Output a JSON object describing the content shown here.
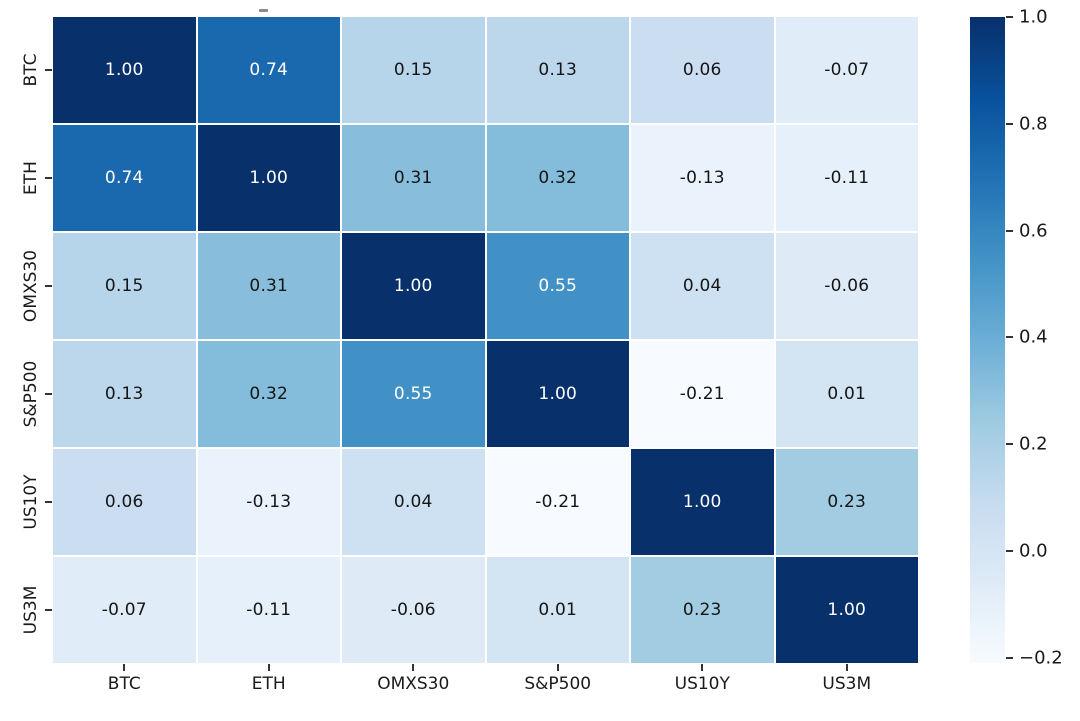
{
  "figure": {
    "background_color": "#ffffff",
    "top_dash_color": "#8a8a8a"
  },
  "chart_data": {
    "type": "heatmap",
    "title": "",
    "categories": [
      "BTC",
      "ETH",
      "OMXS30",
      "S&P500",
      "US10Y",
      "US3M"
    ],
    "matrix": [
      [
        1.0,
        0.74,
        0.15,
        0.13,
        0.06,
        -0.07
      ],
      [
        0.74,
        1.0,
        0.31,
        0.32,
        -0.13,
        -0.11
      ],
      [
        0.15,
        0.31,
        1.0,
        0.55,
        0.04,
        -0.06
      ],
      [
        0.13,
        0.32,
        0.55,
        1.0,
        -0.21,
        0.01
      ],
      [
        0.06,
        -0.13,
        0.04,
        -0.21,
        1.0,
        0.23
      ],
      [
        -0.07,
        -0.11,
        -0.06,
        0.01,
        0.23,
        1.0
      ]
    ],
    "vmin": -0.21,
    "vmax": 1.0,
    "value_decimals": 2,
    "colormap": "Blues",
    "colormap_stops": [
      "#f7fbff",
      "#deebf7",
      "#c6dbef",
      "#9ecae1",
      "#6baed6",
      "#4292c6",
      "#2171b5",
      "#08519c",
      "#08306b"
    ],
    "colorbar_ticks": [
      1.0,
      0.8,
      0.6,
      0.4,
      0.2,
      0.0,
      -0.2
    ],
    "colorbar_tick_decimals": 1,
    "annot_light_color": "#ffffff",
    "annot_dark_color": "#151515",
    "tick_label_color": "#1a1a1a",
    "gridline_color": "#ffffff",
    "legend_position": "right-colorbar",
    "grid": false
  }
}
